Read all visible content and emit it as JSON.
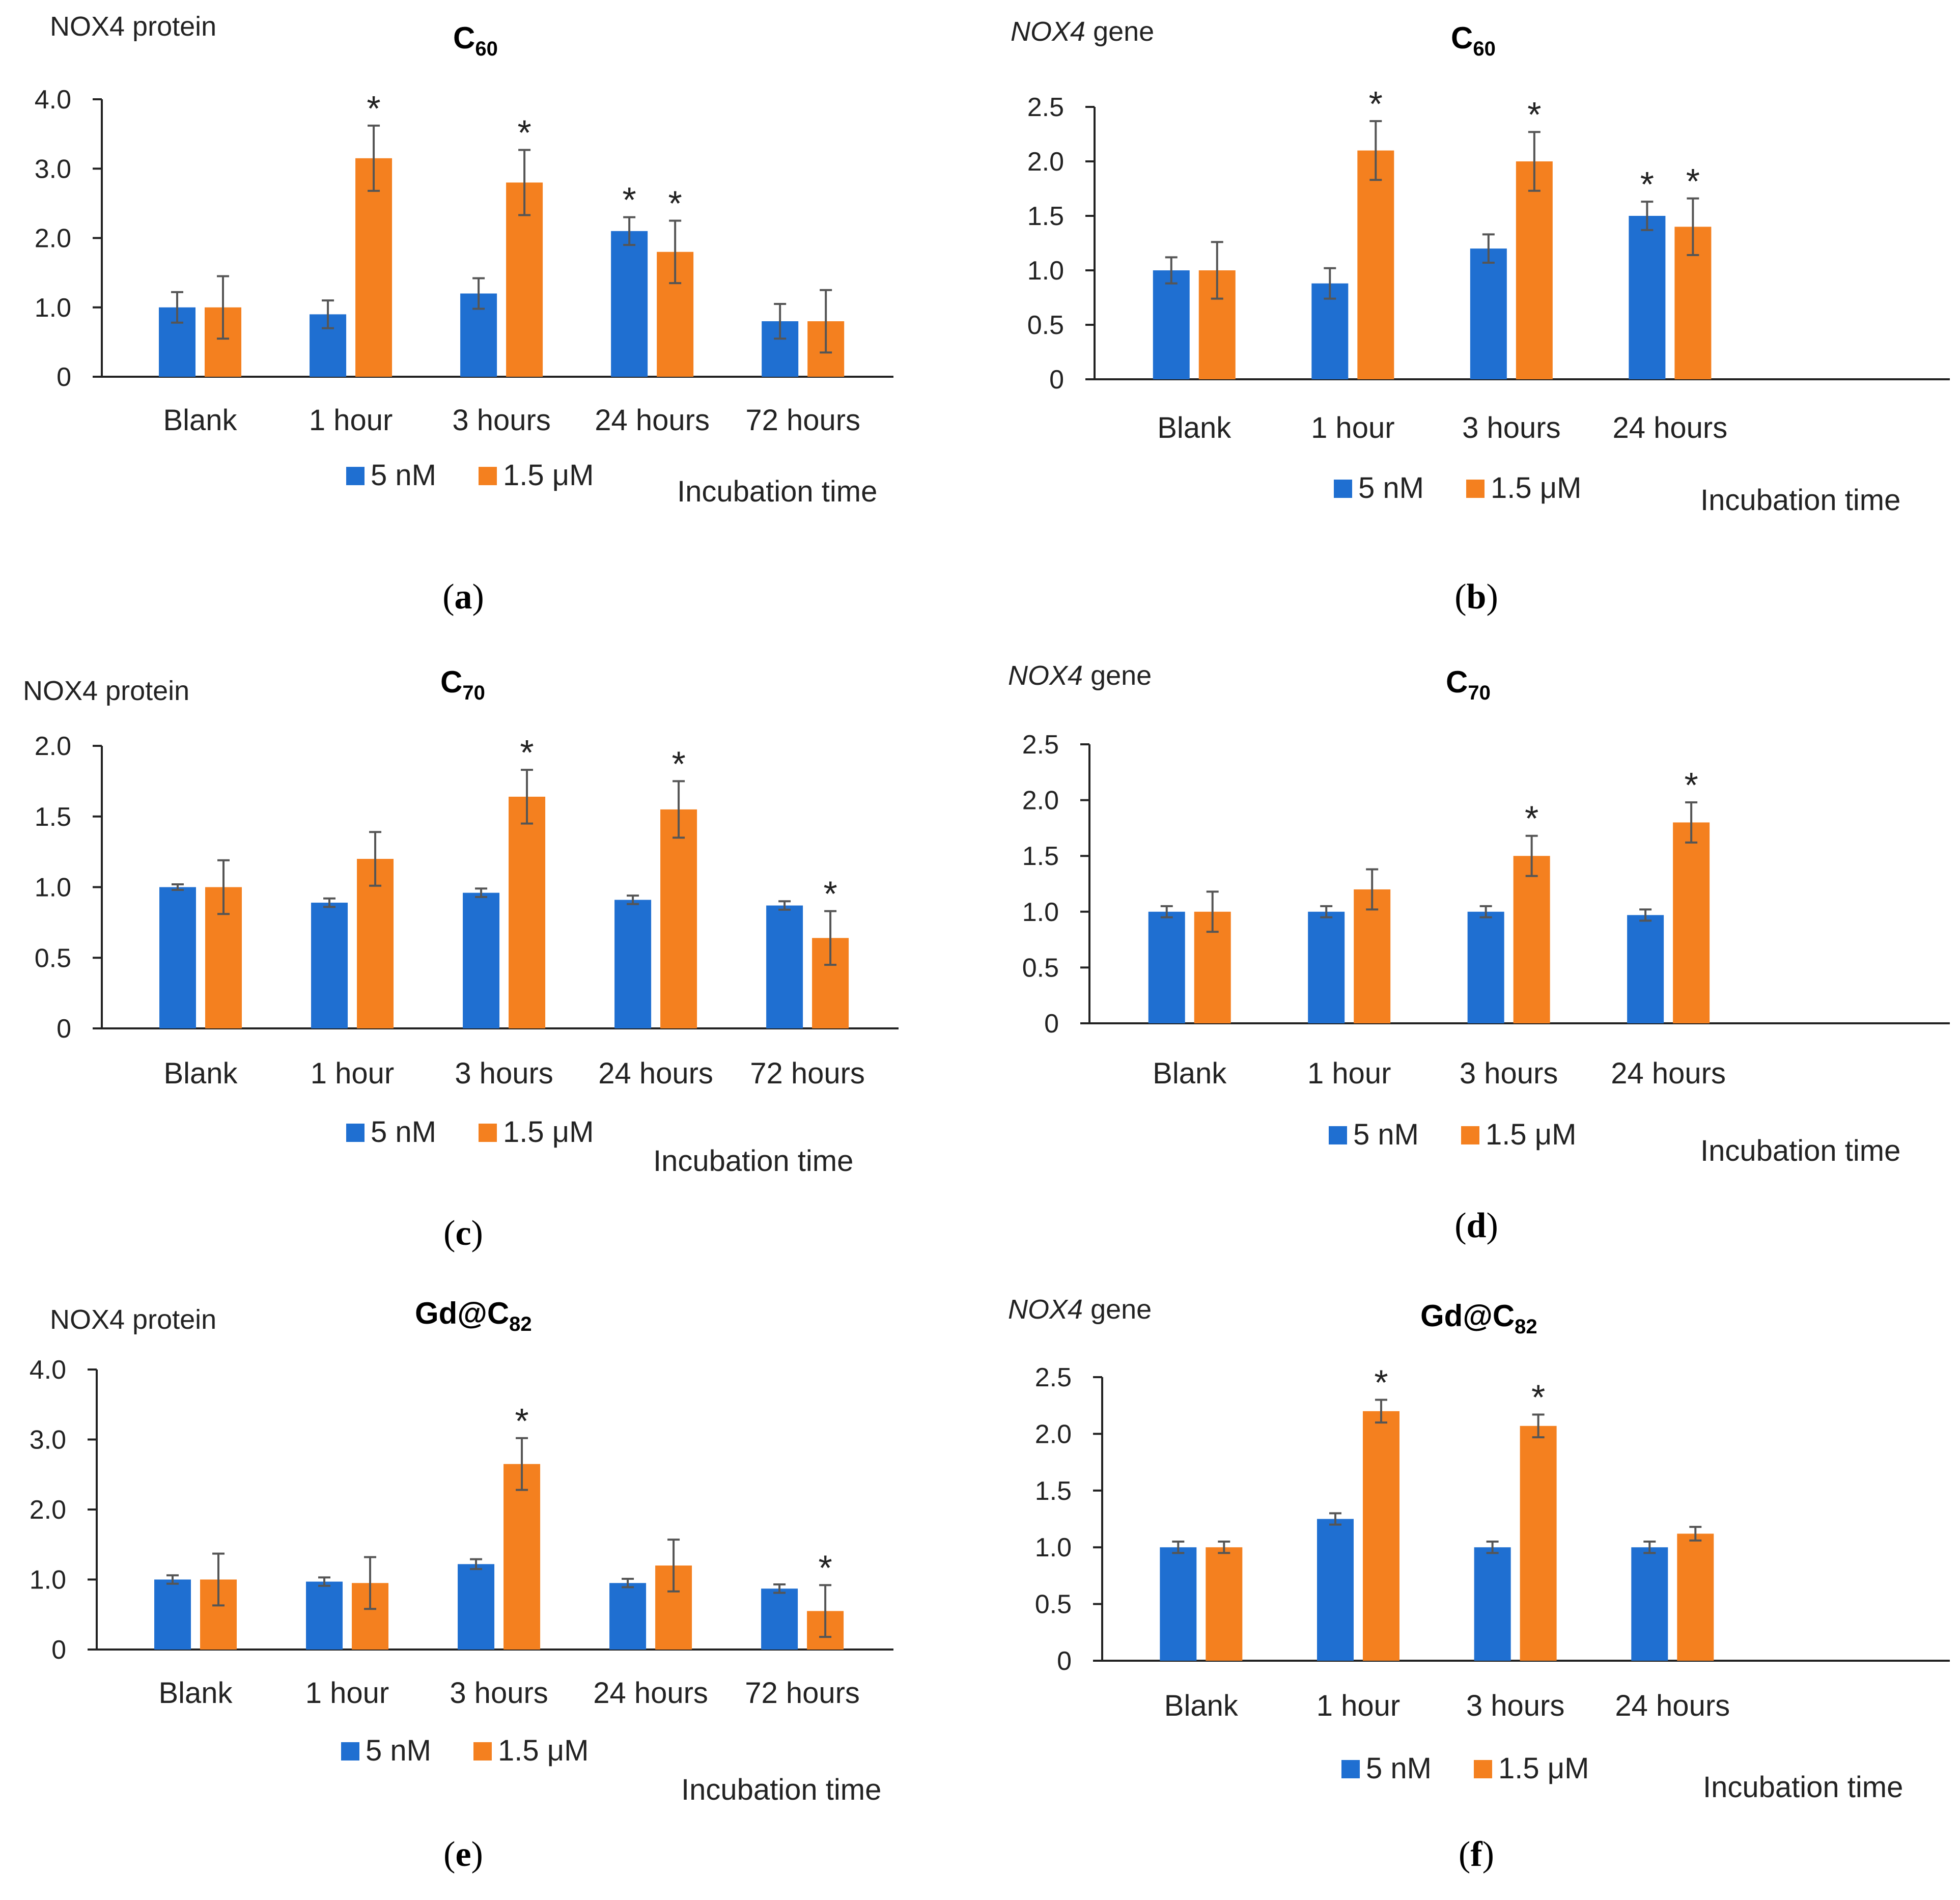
{
  "colors": {
    "s1": "#1f6fd1",
    "s2": "#f4801f",
    "axis": "#222222",
    "errbar": "#555555"
  },
  "legend": {
    "s1": "5 nM",
    "s2": "1.5 μM"
  },
  "chart_data": [
    {
      "type": "bar",
      "panel": "a",
      "ylabel": "NOX4 protein",
      "ylabel_italic": false,
      "title_main": "C",
      "title_sub": "60",
      "xlabel": "Incubation time",
      "categories": [
        "Blank",
        "1 hour",
        "3 hours",
        "24 hours",
        "72 hours"
      ],
      "ylim": [
        0,
        4.0
      ],
      "yticks": [
        "0",
        "1.0",
        "2.0",
        "3.0",
        "4.0"
      ],
      "series": [
        {
          "name": "5 nM",
          "values": [
            1.0,
            0.9,
            1.2,
            2.1,
            0.8
          ],
          "errors": [
            0.22,
            0.2,
            0.22,
            0.2,
            0.25
          ],
          "sig": [
            false,
            false,
            false,
            true,
            false
          ]
        },
        {
          "name": "1.5 μM",
          "values": [
            1.0,
            3.15,
            2.8,
            1.8,
            0.8
          ],
          "errors": [
            0.45,
            0.47,
            0.47,
            0.45,
            0.45
          ],
          "sig": [
            false,
            true,
            true,
            true,
            false
          ]
        }
      ],
      "sig_label": "*"
    },
    {
      "type": "bar",
      "panel": "b",
      "ylabel": "NOX4 gene",
      "ylabel_italic": true,
      "title_main": "C",
      "title_sub": "60",
      "xlabel": "Incubation time",
      "categories": [
        "Blank",
        "1 hour",
        "3 hours",
        "24 hours"
      ],
      "ylim": [
        0,
        2.5
      ],
      "yticks": [
        "0",
        "0.5",
        "1.0",
        "1.5",
        "2.0",
        "2.5"
      ],
      "series": [
        {
          "name": "5 nM",
          "values": [
            1.0,
            0.88,
            1.2,
            1.5
          ],
          "errors": [
            0.12,
            0.14,
            0.13,
            0.13
          ],
          "sig": [
            false,
            false,
            false,
            true
          ]
        },
        {
          "name": "1.5 μM",
          "values": [
            1.0,
            2.1,
            2.0,
            1.4
          ],
          "errors": [
            0.26,
            0.27,
            0.27,
            0.26
          ],
          "sig": [
            false,
            true,
            true,
            true
          ]
        }
      ],
      "sig_label": "*"
    },
    {
      "type": "bar",
      "panel": "c",
      "ylabel": "NOX4 protein",
      "ylabel_italic": false,
      "title_main": "C",
      "title_sub": "70",
      "xlabel": "Incubation time",
      "categories": [
        "Blank",
        "1 hour",
        "3 hours",
        "24 hours",
        "72 hours"
      ],
      "ylim": [
        0,
        2.0
      ],
      "yticks": [
        "0",
        "0.5",
        "1.0",
        "1.5",
        "2.0"
      ],
      "series": [
        {
          "name": "5 nM",
          "values": [
            1.0,
            0.89,
            0.96,
            0.91,
            0.87
          ],
          "errors": [
            0.02,
            0.03,
            0.03,
            0.03,
            0.03
          ],
          "sig": [
            false,
            false,
            false,
            false,
            false
          ]
        },
        {
          "name": "1.5 μM",
          "values": [
            1.0,
            1.2,
            1.64,
            1.55,
            0.64
          ],
          "errors": [
            0.19,
            0.19,
            0.19,
            0.2,
            0.19
          ],
          "sig": [
            false,
            false,
            true,
            true,
            true
          ]
        }
      ],
      "sig_label": "*"
    },
    {
      "type": "bar",
      "panel": "d",
      "ylabel": "NOX4 gene",
      "ylabel_italic": true,
      "title_main": "C",
      "title_sub": "70",
      "xlabel": "Incubation time",
      "categories": [
        "Blank",
        "1 hour",
        "3 hours",
        "24 hours"
      ],
      "ylim": [
        0,
        2.5
      ],
      "yticks": [
        "0",
        "0.5",
        "1.0",
        "1.5",
        "2.0",
        "2.5"
      ],
      "series": [
        {
          "name": "5 nM",
          "values": [
            1.0,
            1.0,
            1.0,
            0.97
          ],
          "errors": [
            0.05,
            0.05,
            0.05,
            0.05
          ],
          "sig": [
            false,
            false,
            false,
            false
          ]
        },
        {
          "name": "1.5 μM",
          "values": [
            1.0,
            1.2,
            1.5,
            1.8
          ],
          "errors": [
            0.18,
            0.18,
            0.18,
            0.18
          ],
          "sig": [
            false,
            false,
            true,
            true
          ]
        }
      ],
      "sig_label": "*"
    },
    {
      "type": "bar",
      "panel": "e",
      "ylabel": "NOX4 protein",
      "ylabel_italic": false,
      "title_main": "Gd@C",
      "title_sub": "82",
      "xlabel": "Incubation time",
      "categories": [
        "Blank",
        "1 hour",
        "3 hours",
        "24 hours",
        "72 hours"
      ],
      "ylim": [
        0,
        4.0
      ],
      "yticks": [
        "0",
        "1.0",
        "2.0",
        "3.0",
        "4.0"
      ],
      "series": [
        {
          "name": "5 nM",
          "values": [
            1.0,
            0.97,
            1.22,
            0.95,
            0.87
          ],
          "errors": [
            0.06,
            0.06,
            0.07,
            0.06,
            0.06
          ],
          "sig": [
            false,
            false,
            false,
            false,
            false
          ]
        },
        {
          "name": "1.5 μM",
          "values": [
            1.0,
            0.95,
            2.65,
            1.2,
            0.55
          ],
          "errors": [
            0.37,
            0.37,
            0.37,
            0.37,
            0.37
          ],
          "sig": [
            false,
            false,
            true,
            false,
            true
          ]
        }
      ],
      "sig_label": "*"
    },
    {
      "type": "bar",
      "panel": "f",
      "ylabel": "NOX4 gene",
      "ylabel_italic": true,
      "title_main": "Gd@C",
      "title_sub": "82",
      "xlabel": "Incubation time",
      "categories": [
        "Blank",
        "1 hour",
        "3 hours",
        "24 hours"
      ],
      "ylim": [
        0,
        2.5
      ],
      "yticks": [
        "0",
        "0.5",
        "1.0",
        "1.5",
        "2.0",
        "2.5"
      ],
      "series": [
        {
          "name": "5 nM",
          "values": [
            1.0,
            1.25,
            1.0,
            1.0
          ],
          "errors": [
            0.05,
            0.05,
            0.05,
            0.05
          ],
          "sig": [
            false,
            false,
            false,
            false
          ]
        },
        {
          "name": "1.5 μM",
          "values": [
            1.0,
            2.2,
            2.07,
            1.12
          ],
          "errors": [
            0.05,
            0.1,
            0.1,
            0.06
          ],
          "sig": [
            false,
            true,
            true,
            false
          ]
        }
      ],
      "sig_label": "*"
    }
  ]
}
